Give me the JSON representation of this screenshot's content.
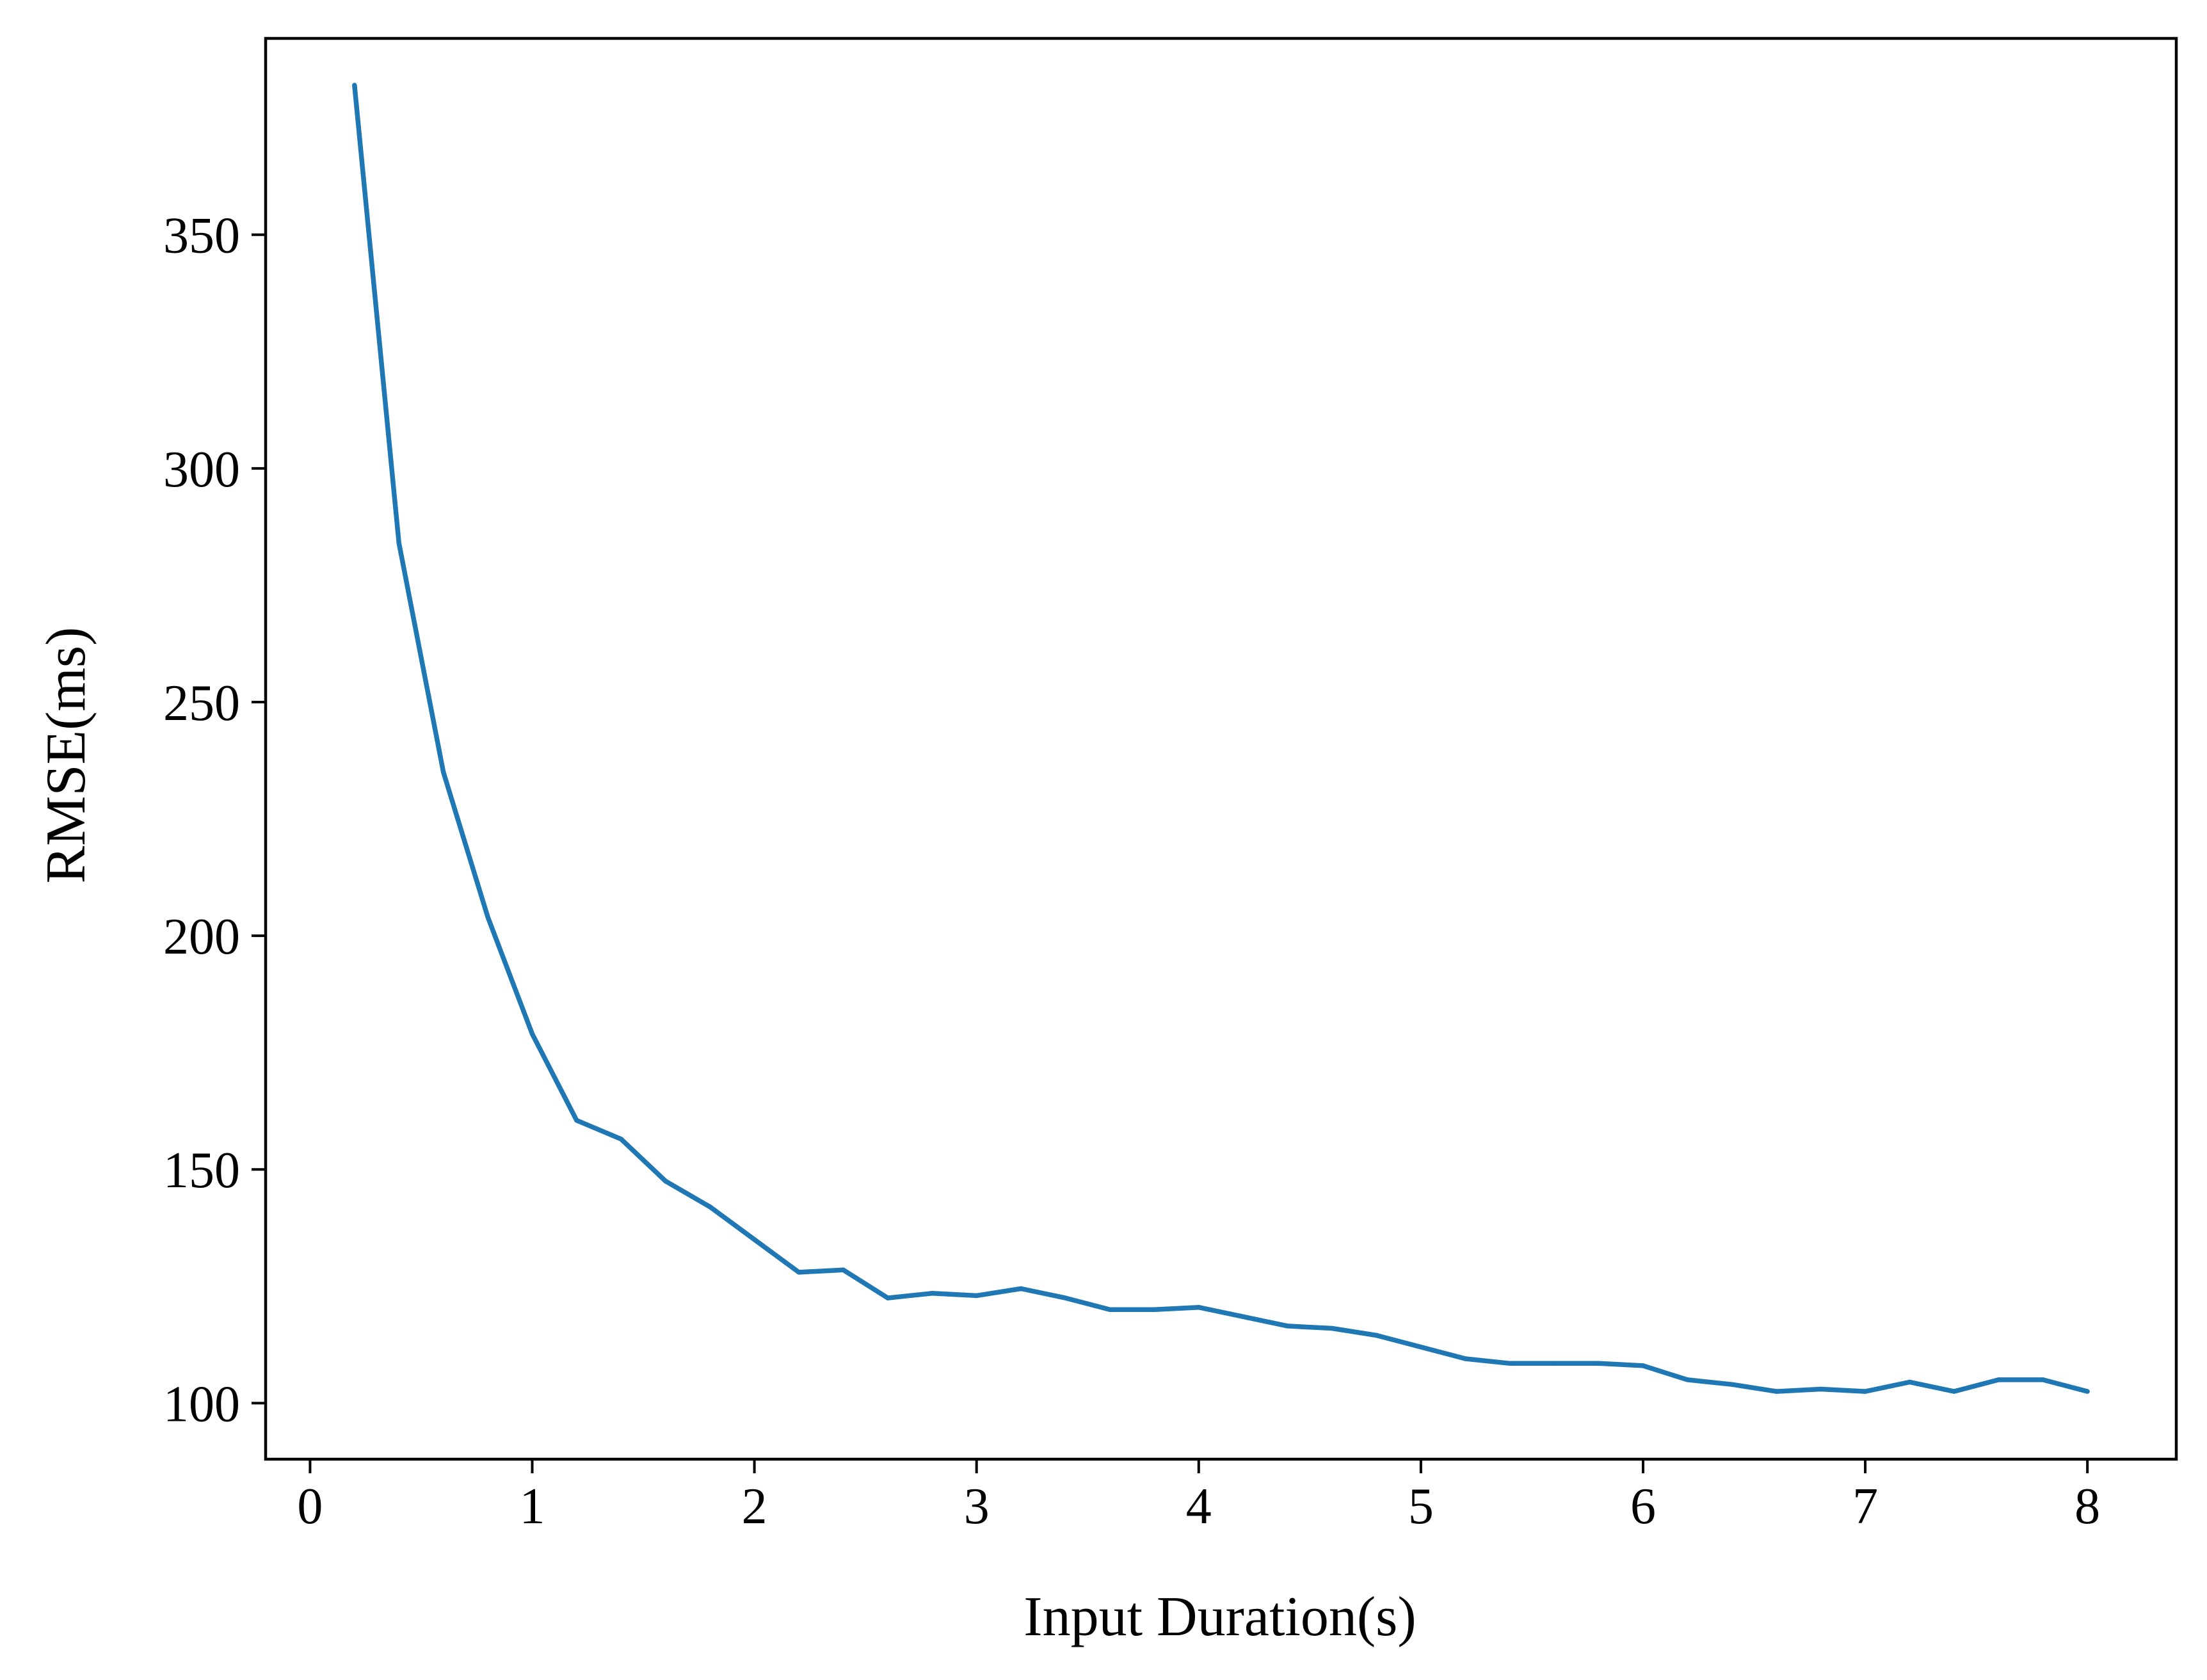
{
  "chart_data": {
    "type": "line",
    "title": "",
    "xlabel": "Input Duration(s)",
    "ylabel": "RMSE(ms)",
    "xlim": [
      -0.2,
      8.4
    ],
    "ylim": [
      88,
      392
    ],
    "xticks": [
      0,
      1,
      2,
      3,
      4,
      5,
      6,
      7,
      8
    ],
    "yticks": [
      100,
      150,
      200,
      250,
      300,
      350
    ],
    "grid": false,
    "legend": "none",
    "series": [
      {
        "color": "#1f77b4",
        "x": [
          0.2,
          0.4,
          0.6,
          0.8,
          1.0,
          1.2,
          1.4,
          1.6,
          1.8,
          2.0,
          2.2,
          2.4,
          2.6,
          2.8,
          3.0,
          3.2,
          3.4,
          3.6,
          3.8,
          4.0,
          4.2,
          4.4,
          4.6,
          4.8,
          5.0,
          5.2,
          5.4,
          5.6,
          5.8,
          6.0,
          6.2,
          6.4,
          6.6,
          6.8,
          7.0,
          7.2,
          7.4,
          7.6,
          7.8,
          8.0
        ],
        "y": [
          382,
          284,
          235,
          204,
          179,
          160.5,
          156.5,
          147.5,
          142,
          135,
          128,
          128.5,
          122.5,
          123.5,
          123,
          124.5,
          122.5,
          120,
          120,
          120.5,
          118.5,
          116.5,
          116,
          114.5,
          112,
          109.5,
          108.5,
          108.5,
          108.5,
          108,
          105,
          104,
          102.5,
          103,
          102.5,
          104.5,
          102.5,
          105,
          105,
          102.5
        ]
      }
    ]
  }
}
